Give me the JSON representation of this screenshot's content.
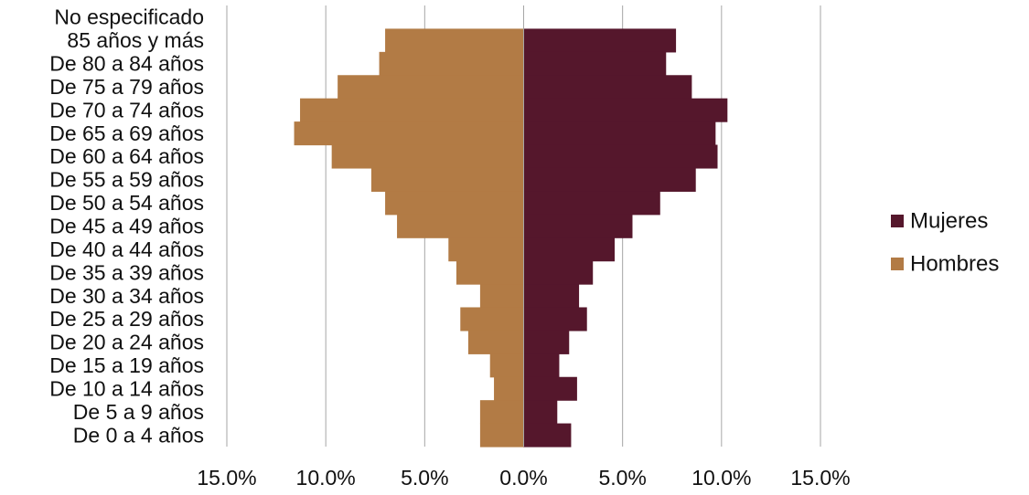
{
  "chart_data": {
    "type": "bar",
    "orientation": "horizontal",
    "title": "",
    "xlabel": "",
    "ylabel": "",
    "categories": [
      "No especificado",
      "85 años y más",
      "De 80 a 84 años",
      "De 75 a 79 años",
      "De 70 a 74 años",
      "De 65 a 69 años",
      "De 60 a 64 años",
      "De 55 a 59 años",
      "De 50 a 54 años",
      "De 45 a 49 años",
      "De 40 a 44 años",
      "De 35 a 39 años",
      "De 30 a 34 años",
      "De 25 a 29 años",
      "De 20 a 24 años",
      "De 15 a 19 años",
      "De 10 a 14 años",
      "De 5 a 9 años",
      "De 0 a 4 años"
    ],
    "series": [
      {
        "name": "Mujeres",
        "color": "#55172c",
        "values": [
          0.0,
          7.7,
          7.2,
          8.5,
          10.3,
          9.7,
          9.8,
          8.7,
          6.9,
          5.5,
          4.6,
          3.5,
          2.8,
          3.2,
          2.3,
          1.8,
          2.7,
          1.7,
          2.4
        ]
      },
      {
        "name": "Hombres",
        "color": "#b27b45",
        "values": [
          0.0,
          -7.0,
          -7.3,
          -9.4,
          -11.3,
          -11.6,
          -9.7,
          -7.7,
          -7.0,
          -6.4,
          -3.8,
          -3.4,
          -2.2,
          -3.2,
          -2.8,
          -1.7,
          -1.5,
          -2.2,
          -2.2
        ]
      }
    ],
    "xlim": [
      -15,
      15
    ],
    "x_ticks": [
      -15,
      -10,
      -5,
      0,
      5,
      10,
      15
    ],
    "x_tick_labels": [
      "15.0%",
      "10.0%",
      "5.0%",
      "0.0%",
      "5.0%",
      "10.0%",
      "15.0%"
    ],
    "grid": true,
    "legend_position": "right",
    "legend_order": [
      "Mujeres",
      "Hombres"
    ],
    "gridline_color": "#a6a6a6"
  }
}
